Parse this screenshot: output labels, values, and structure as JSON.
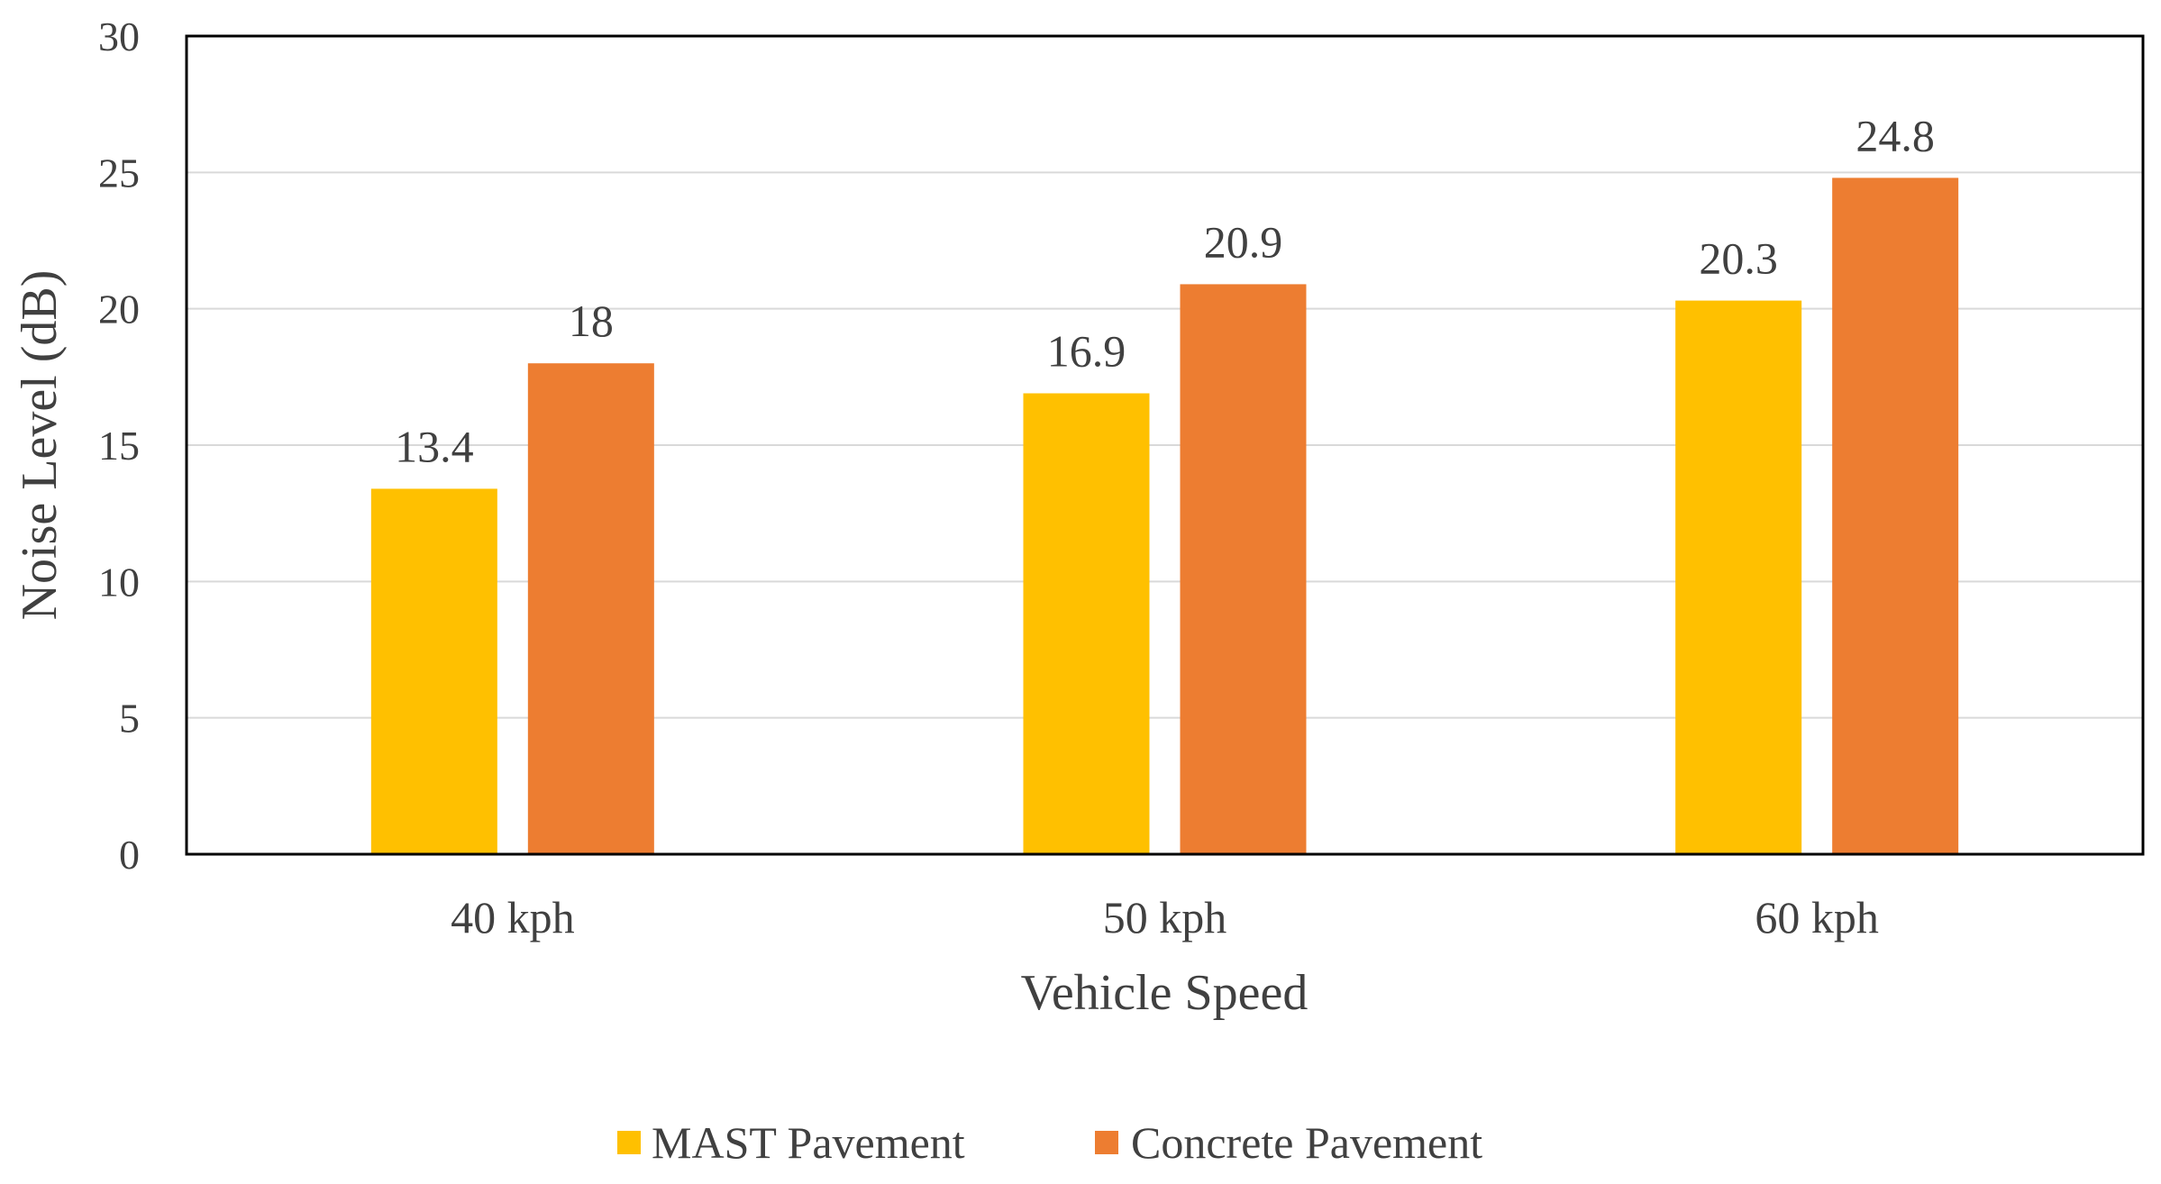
{
  "chart_data": {
    "type": "bar",
    "title": "",
    "xlabel": "Vehicle Speed",
    "ylabel": "Noise Level (dB)",
    "categories": [
      "40 kph",
      "50 kph",
      "60 kph"
    ],
    "yticks": [
      "0",
      "5",
      "10",
      "15",
      "20",
      "25",
      "30"
    ],
    "ylim": [
      0,
      30
    ],
    "grid": true,
    "legend_position": "bottom",
    "series": [
      {
        "name": "MAST Pavement",
        "color": "#FFC000",
        "values": [
          13.4,
          16.9,
          20.3
        ],
        "labels": [
          "13.4",
          "16.9",
          "20.3"
        ]
      },
      {
        "name": "Concrete Pavement",
        "color": "#ED7D31",
        "values": [
          18,
          20.9,
          24.8
        ],
        "labels": [
          "18",
          "20.9",
          "24.8"
        ]
      }
    ]
  }
}
